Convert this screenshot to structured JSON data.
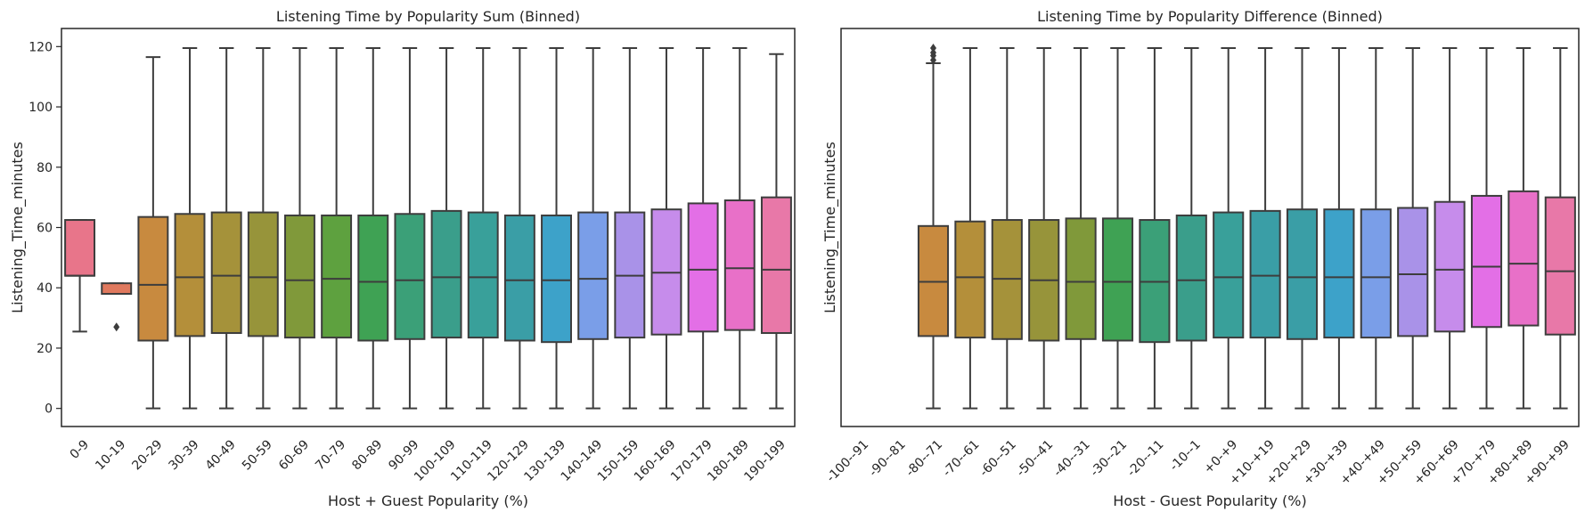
{
  "chart_data": [
    {
      "type": "box",
      "title": "Listening Time by Popularity Sum (Binned)",
      "xlabel": "Host + Guest Popularity (%)",
      "ylabel": "Listening_Time_minutes",
      "ylim": [
        -6,
        126
      ],
      "yticks": [
        0,
        20,
        40,
        60,
        80,
        100,
        120
      ],
      "grid": false,
      "categories": [
        "0-9",
        "10-19",
        "20-29",
        "30-39",
        "40-49",
        "50-59",
        "60-69",
        "70-79",
        "80-89",
        "90-99",
        "100-109",
        "110-119",
        "120-129",
        "130-139",
        "140-149",
        "150-159",
        "160-169",
        "170-179",
        "180-189",
        "190-199"
      ],
      "colors": [
        "#e8758a",
        "#e0795e",
        "#c88a3f",
        "#b48f3a",
        "#a5923a",
        "#97943a",
        "#80993a",
        "#5ea13f",
        "#3fa254",
        "#3ba078",
        "#3a9e8b",
        "#39a09a",
        "#3a9ea6",
        "#3da2c9",
        "#7a9ee8",
        "#a992e8",
        "#c68ceb",
        "#e36fe6",
        "#e870c8",
        "#e878a8"
      ],
      "boxes": [
        {
          "whislo": 25.5,
          "q1": 44,
          "med": 44,
          "q3": 62.5,
          "whishi": 62.5,
          "fliers": []
        },
        {
          "whislo": 38,
          "q1": 38,
          "med": 38,
          "q3": 41.5,
          "whishi": 41.5,
          "fliers": [
            27
          ]
        },
        {
          "whislo": 0,
          "q1": 22.5,
          "med": 41,
          "q3": 63.5,
          "whishi": 116.5,
          "fliers": []
        },
        {
          "whislo": 0,
          "q1": 24,
          "med": 43.5,
          "q3": 64.5,
          "whishi": 119.5,
          "fliers": []
        },
        {
          "whislo": 0,
          "q1": 25,
          "med": 44,
          "q3": 65,
          "whishi": 119.5,
          "fliers": []
        },
        {
          "whislo": 0,
          "q1": 24,
          "med": 43.5,
          "q3": 65,
          "whishi": 119.5,
          "fliers": []
        },
        {
          "whislo": 0,
          "q1": 23.5,
          "med": 42.5,
          "q3": 64,
          "whishi": 119.5,
          "fliers": []
        },
        {
          "whislo": 0,
          "q1": 23.5,
          "med": 43,
          "q3": 64,
          "whishi": 119.5,
          "fliers": []
        },
        {
          "whislo": 0,
          "q1": 22.5,
          "med": 42,
          "q3": 64,
          "whishi": 119.5,
          "fliers": []
        },
        {
          "whislo": 0,
          "q1": 23,
          "med": 42.5,
          "q3": 64.5,
          "whishi": 119.5,
          "fliers": []
        },
        {
          "whislo": 0,
          "q1": 23.5,
          "med": 43.5,
          "q3": 65.5,
          "whishi": 119.5,
          "fliers": []
        },
        {
          "whislo": 0,
          "q1": 23.5,
          "med": 43.5,
          "q3": 65,
          "whishi": 119.5,
          "fliers": []
        },
        {
          "whislo": 0,
          "q1": 22.5,
          "med": 42.5,
          "q3": 64,
          "whishi": 119.5,
          "fliers": []
        },
        {
          "whislo": 0,
          "q1": 22,
          "med": 42.5,
          "q3": 64,
          "whishi": 119.5,
          "fliers": []
        },
        {
          "whislo": 0,
          "q1": 23,
          "med": 43,
          "q3": 65,
          "whishi": 119.5,
          "fliers": []
        },
        {
          "whislo": 0,
          "q1": 23.5,
          "med": 44,
          "q3": 65,
          "whishi": 119.5,
          "fliers": []
        },
        {
          "whislo": 0,
          "q1": 24.5,
          "med": 45,
          "q3": 66,
          "whishi": 119.5,
          "fliers": []
        },
        {
          "whislo": 0,
          "q1": 25.5,
          "med": 46,
          "q3": 68,
          "whishi": 119.5,
          "fliers": []
        },
        {
          "whislo": 0,
          "q1": 26,
          "med": 46.5,
          "q3": 69,
          "whishi": 119.5,
          "fliers": []
        },
        {
          "whislo": 0,
          "q1": 25,
          "med": 46,
          "q3": 70,
          "whishi": 117.5,
          "fliers": []
        }
      ]
    },
    {
      "type": "box",
      "title": "Listening Time by Popularity Difference (Binned)",
      "xlabel": "Host - Guest Popularity (%)",
      "ylabel": "Listening_Time_minutes",
      "ylim": [
        -6,
        126
      ],
      "yticks": [],
      "grid": false,
      "categories": [
        "-100--91",
        "-90--81",
        "-80--71",
        "-70--61",
        "-60--51",
        "-50--41",
        "-40--31",
        "-30--21",
        "-20--11",
        "-10--1",
        "+0-+9",
        "+10-+19",
        "+20-+29",
        "+30-+39",
        "+40-+49",
        "+50-+59",
        "+60-+69",
        "+70-+79",
        "+80-+89",
        "+90-+99"
      ],
      "colors": [
        "#e8758a",
        "#e0795e",
        "#c88a3f",
        "#b48f3a",
        "#a5923a",
        "#97943a",
        "#80993a",
        "#3fa254",
        "#3ba078",
        "#3a9e8b",
        "#39a09a",
        "#3a9ea6",
        "#3a9ea6",
        "#3da2c9",
        "#7a9ee8",
        "#a992e8",
        "#c68ceb",
        "#e36fe6",
        "#e870c8",
        "#e878a8"
      ],
      "boxes": [
        null,
        null,
        {
          "whislo": 0,
          "q1": 24,
          "med": 42,
          "q3": 60.5,
          "whishi": 114.5,
          "fliers": [
            115.5,
            117,
            118,
            119.5
          ]
        },
        {
          "whislo": 0,
          "q1": 23.5,
          "med": 43.5,
          "q3": 62,
          "whishi": 119.5,
          "fliers": []
        },
        {
          "whislo": 0,
          "q1": 23,
          "med": 43,
          "q3": 62.5,
          "whishi": 119.5,
          "fliers": []
        },
        {
          "whislo": 0,
          "q1": 22.5,
          "med": 42.5,
          "q3": 62.5,
          "whishi": 119.5,
          "fliers": []
        },
        {
          "whislo": 0,
          "q1": 23,
          "med": 42,
          "q3": 63,
          "whishi": 119.5,
          "fliers": []
        },
        {
          "whislo": 0,
          "q1": 22.5,
          "med": 42,
          "q3": 63,
          "whishi": 119.5,
          "fliers": []
        },
        {
          "whislo": 0,
          "q1": 22,
          "med": 42,
          "q3": 62.5,
          "whishi": 119.5,
          "fliers": []
        },
        {
          "whislo": 0,
          "q1": 22.5,
          "med": 42.5,
          "q3": 64,
          "whishi": 119.5,
          "fliers": []
        },
        {
          "whislo": 0,
          "q1": 23.5,
          "med": 43.5,
          "q3": 65,
          "whishi": 119.5,
          "fliers": []
        },
        {
          "whislo": 0,
          "q1": 23.5,
          "med": 44,
          "q3": 65.5,
          "whishi": 119.5,
          "fliers": []
        },
        {
          "whislo": 0,
          "q1": 23,
          "med": 43.5,
          "q3": 66,
          "whishi": 119.5,
          "fliers": []
        },
        {
          "whislo": 0,
          "q1": 23.5,
          "med": 43.5,
          "q3": 66,
          "whishi": 119.5,
          "fliers": []
        },
        {
          "whislo": 0,
          "q1": 23.5,
          "med": 43.5,
          "q3": 66,
          "whishi": 119.5,
          "fliers": []
        },
        {
          "whislo": 0,
          "q1": 24,
          "med": 44.5,
          "q3": 66.5,
          "whishi": 119.5,
          "fliers": []
        },
        {
          "whislo": 0,
          "q1": 25.5,
          "med": 46,
          "q3": 68.5,
          "whishi": 119.5,
          "fliers": []
        },
        {
          "whislo": 0,
          "q1": 27,
          "med": 47,
          "q3": 70.5,
          "whishi": 119.5,
          "fliers": []
        },
        {
          "whislo": 0,
          "q1": 27.5,
          "med": 48,
          "q3": 72,
          "whishi": 119.5,
          "fliers": []
        },
        {
          "whislo": 0,
          "q1": 24.5,
          "med": 45.5,
          "q3": 70,
          "whishi": 119.5,
          "fliers": []
        }
      ]
    }
  ]
}
